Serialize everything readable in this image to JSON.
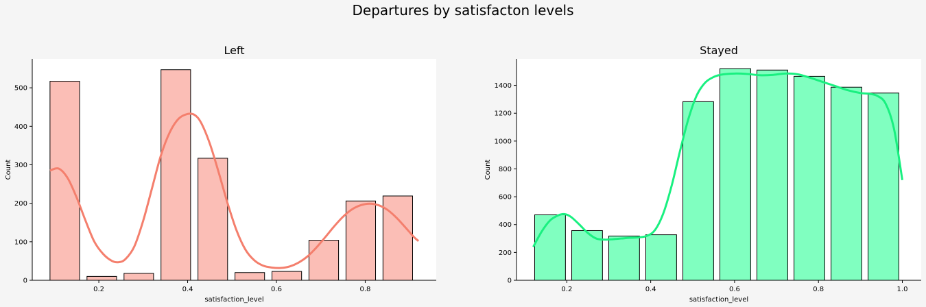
{
  "figure": {
    "title": "Departures by satisfacton levels"
  },
  "chart_data": [
    {
      "type": "bar",
      "title": "Left",
      "xlabel": "satisfaction_level",
      "ylabel": "Count",
      "xlim": [
        0.05,
        0.96
      ],
      "ylim": [
        0,
        575
      ],
      "xticks": [
        0.2,
        0.4,
        0.6,
        0.8
      ],
      "yticks": [
        0,
        100,
        200,
        300,
        400,
        500
      ],
      "bar_color": "#fbbeb6",
      "kde_color": "#f47f6d",
      "bins": [
        {
          "start": 0.09,
          "end": 0.1567,
          "value": 517
        },
        {
          "start": 0.1733,
          "end": 0.24,
          "value": 10
        },
        {
          "start": 0.2567,
          "end": 0.3233,
          "value": 18
        },
        {
          "start": 0.34,
          "end": 0.4067,
          "value": 547
        },
        {
          "start": 0.4233,
          "end": 0.49,
          "value": 317
        },
        {
          "start": 0.5067,
          "end": 0.5733,
          "value": 20
        },
        {
          "start": 0.59,
          "end": 0.6567,
          "value": 23
        },
        {
          "start": 0.6733,
          "end": 0.74,
          "value": 104
        },
        {
          "start": 0.7567,
          "end": 0.8233,
          "value": 206
        },
        {
          "start": 0.84,
          "end": 0.9067,
          "value": 219
        }
      ],
      "kde": [
        [
          0.09,
          285
        ],
        [
          0.11,
          290
        ],
        [
          0.13,
          265
        ],
        [
          0.15,
          215
        ],
        [
          0.17,
          155
        ],
        [
          0.19,
          100
        ],
        [
          0.21,
          68
        ],
        [
          0.23,
          50
        ],
        [
          0.245,
          47
        ],
        [
          0.26,
          55
        ],
        [
          0.28,
          88
        ],
        [
          0.3,
          155
        ],
        [
          0.32,
          240
        ],
        [
          0.34,
          325
        ],
        [
          0.36,
          385
        ],
        [
          0.38,
          420
        ],
        [
          0.4,
          432
        ],
        [
          0.415,
          430
        ],
        [
          0.43,
          410
        ],
        [
          0.45,
          355
        ],
        [
          0.47,
          280
        ],
        [
          0.49,
          200
        ],
        [
          0.51,
          130
        ],
        [
          0.53,
          80
        ],
        [
          0.55,
          52
        ],
        [
          0.57,
          38
        ],
        [
          0.59,
          33
        ],
        [
          0.61,
          32
        ],
        [
          0.63,
          36
        ],
        [
          0.65,
          46
        ],
        [
          0.67,
          62
        ],
        [
          0.69,
          85
        ],
        [
          0.71,
          112
        ],
        [
          0.73,
          140
        ],
        [
          0.75,
          165
        ],
        [
          0.77,
          184
        ],
        [
          0.79,
          195
        ],
        [
          0.81,
          199
        ],
        [
          0.83,
          195
        ],
        [
          0.85,
          183
        ],
        [
          0.87,
          163
        ],
        [
          0.89,
          138
        ],
        [
          0.91,
          112
        ],
        [
          0.92,
          102
        ]
      ]
    },
    {
      "type": "bar",
      "title": "Stayed",
      "xlabel": "satisfaction_level",
      "ylabel": "Count",
      "xlim": [
        0.08,
        1.045
      ],
      "ylim": [
        0,
        1590
      ],
      "xticks": [
        0.2,
        0.4,
        0.6,
        0.8,
        1.0
      ],
      "yticks": [
        0,
        200,
        400,
        600,
        800,
        1000,
        1200,
        1400
      ],
      "bar_color": "#80ffc0",
      "kde_color": "#19f080",
      "bins": [
        {
          "start": 0.1233,
          "end": 0.1967,
          "value": 470
        },
        {
          "start": 0.2117,
          "end": 0.285,
          "value": 357
        },
        {
          "start": 0.3,
          "end": 0.3733,
          "value": 318
        },
        {
          "start": 0.3883,
          "end": 0.4617,
          "value": 327
        },
        {
          "start": 0.4767,
          "end": 0.55,
          "value": 1283
        },
        {
          "start": 0.565,
          "end": 0.6383,
          "value": 1520
        },
        {
          "start": 0.6533,
          "end": 0.7267,
          "value": 1510
        },
        {
          "start": 0.7417,
          "end": 0.815,
          "value": 1465
        },
        {
          "start": 0.83,
          "end": 0.9033,
          "value": 1387
        },
        {
          "start": 0.9183,
          "end": 0.9917,
          "value": 1345
        }
      ],
      "kde": [
        [
          0.12,
          240
        ],
        [
          0.14,
          350
        ],
        [
          0.16,
          430
        ],
        [
          0.18,
          467
        ],
        [
          0.195,
          475
        ],
        [
          0.21,
          455
        ],
        [
          0.23,
          400
        ],
        [
          0.25,
          340
        ],
        [
          0.27,
          300
        ],
        [
          0.29,
          292
        ],
        [
          0.31,
          295
        ],
        [
          0.33,
          300
        ],
        [
          0.35,
          305
        ],
        [
          0.37,
          308
        ],
        [
          0.39,
          318
        ],
        [
          0.41,
          360
        ],
        [
          0.43,
          480
        ],
        [
          0.45,
          680
        ],
        [
          0.47,
          930
        ],
        [
          0.49,
          1160
        ],
        [
          0.51,
          1330
        ],
        [
          0.53,
          1420
        ],
        [
          0.55,
          1460
        ],
        [
          0.57,
          1478
        ],
        [
          0.6,
          1485
        ],
        [
          0.63,
          1482
        ],
        [
          0.66,
          1473
        ],
        [
          0.69,
          1475
        ],
        [
          0.72,
          1485
        ],
        [
          0.75,
          1480
        ],
        [
          0.78,
          1455
        ],
        [
          0.81,
          1425
        ],
        [
          0.84,
          1395
        ],
        [
          0.87,
          1365
        ],
        [
          0.9,
          1345
        ],
        [
          0.92,
          1340
        ],
        [
          0.94,
          1325
        ],
        [
          0.96,
          1270
        ],
        [
          0.98,
          1090
        ],
        [
          1.0,
          720
        ]
      ]
    }
  ]
}
